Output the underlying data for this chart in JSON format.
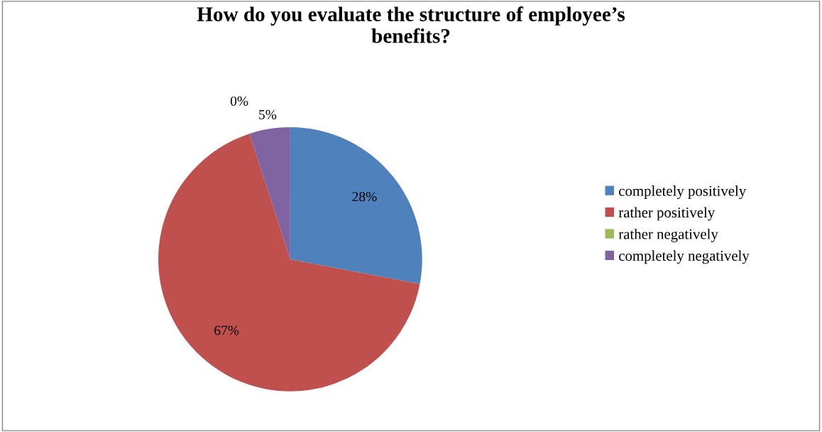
{
  "chart_data": {
    "type": "pie",
    "title": "How do you evaluate the structure of employee’s\nbenefits?",
    "categories": [
      "completely positively",
      "rather positively",
      "rather negatively",
      "completely negatively"
    ],
    "values": [
      28,
      67,
      0,
      5
    ],
    "colors": [
      "#4f81bd",
      "#c0504d",
      "#9bbb59",
      "#8064a2"
    ],
    "value_labels": [
      "28%",
      "67%",
      "0%",
      "5%"
    ],
    "legend": "right"
  }
}
